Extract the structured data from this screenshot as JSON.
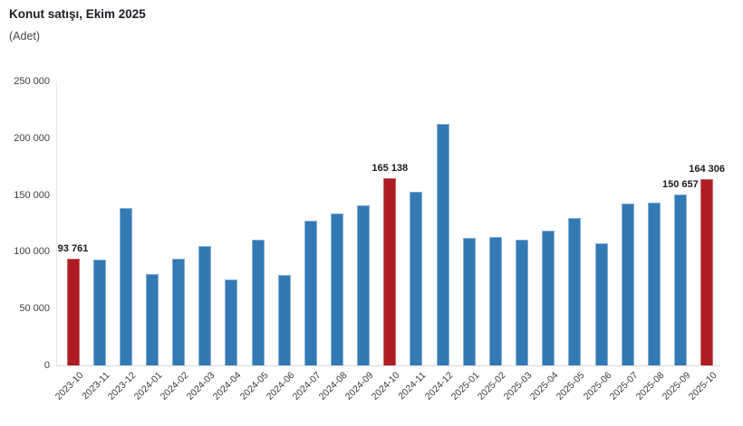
{
  "chart_data": {
    "type": "bar",
    "title": "Konut satışı, Ekim 2025",
    "subtitle": "(Adet)",
    "xlabel": "",
    "ylabel": "Adet",
    "categories": [
      "2023-10",
      "2023-11",
      "2023-12",
      "2024-01",
      "2024-02",
      "2024-03",
      "2024-04",
      "2024-05",
      "2024-06",
      "2024-07",
      "2024-08",
      "2024-09",
      "2024-10",
      "2024-11",
      "2024-12",
      "2025-01",
      "2025-02",
      "2025-03",
      "2025-04",
      "2025-05",
      "2025-06",
      "2025-07",
      "2025-08",
      "2025-09",
      "2025-10"
    ],
    "values": [
      93761,
      93577,
      138577,
      80308,
      93902,
      105476,
      75569,
      110588,
      79313,
      127088,
      134155,
      140919,
      165138,
      153014,
      212637,
      112173,
      112818,
      110795,
      118359,
      130025,
      107723,
      142858,
      143319,
      150657,
      164306
    ],
    "highlight_indices": [
      0,
      12,
      24
    ],
    "data_labels": [
      {
        "index": 0,
        "text": "93 761"
      },
      {
        "index": 12,
        "text": "165 138"
      },
      {
        "index": 23,
        "text": "150 657"
      },
      {
        "index": 24,
        "text": "164 306"
      }
    ],
    "ylim": [
      0,
      250000
    ],
    "yticks": [
      0,
      50000,
      100000,
      150000,
      200000,
      250000
    ],
    "ytick_labels": [
      "0",
      "50 000",
      "100 000",
      "150 000",
      "200 000",
      "250 000"
    ],
    "grid": false,
    "legend": false,
    "colors": {
      "bar_default": "#337AB5",
      "bar_default_border": "#85AFD4",
      "bar_highlight": "#AE1C23",
      "bar_highlight_border": "#C9696D",
      "axis_line": "#d9d9d9",
      "title_text": "#1b1e24",
      "tick_text": "#404040"
    }
  }
}
